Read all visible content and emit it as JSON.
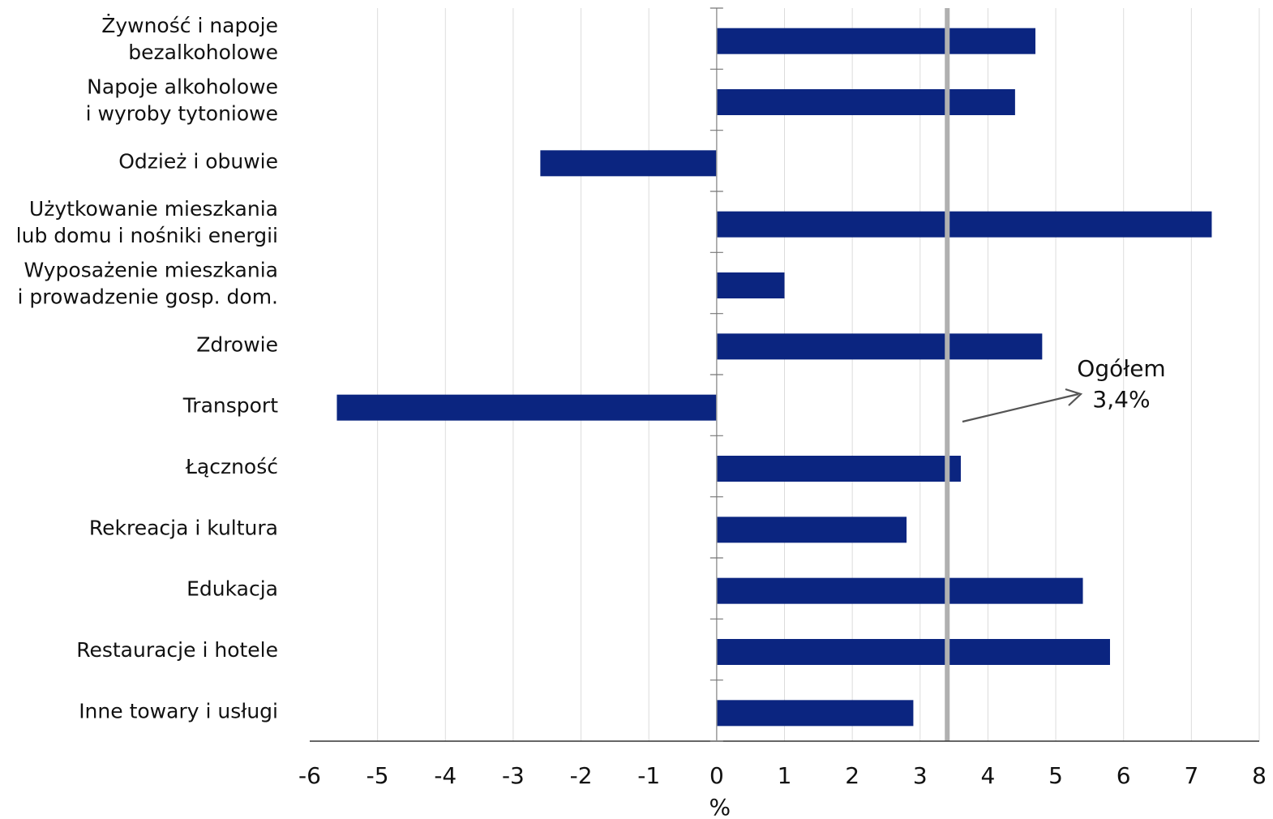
{
  "chart_data": {
    "type": "bar",
    "orientation": "horizontal",
    "categories": [
      [
        "Żywność i napoje",
        "bezalkoholowe"
      ],
      [
        "Napoje alkoholowe",
        "i wyroby tytoniowe"
      ],
      [
        "Odzież i obuwie"
      ],
      [
        "Użytkowanie mieszkania",
        "lub domu i nośniki energii"
      ],
      [
        "Wyposażenie mieszkania",
        "i prowadzenie gosp. dom."
      ],
      [
        "Zdrowie"
      ],
      [
        "Transport"
      ],
      [
        "Łączność"
      ],
      [
        "Rekreacja i kultura"
      ],
      [
        "Edukacja"
      ],
      [
        "Restauracje i hotele"
      ],
      [
        "Inne towary i usługi"
      ]
    ],
    "values": [
      4.7,
      4.4,
      -2.6,
      7.3,
      1.0,
      4.8,
      -5.6,
      3.6,
      2.8,
      5.4,
      5.8,
      2.9
    ],
    "xlabel": "%",
    "xlim": [
      -6,
      8
    ],
    "xticks": [
      "-6",
      "-5",
      "-4",
      "-3",
      "-2",
      "-1",
      "0",
      "1",
      "2",
      "3",
      "4",
      "5",
      "6",
      "7",
      "8"
    ],
    "grid": "vertical",
    "bar_color": "#0b2580",
    "reference_line": {
      "value": 3.4,
      "color": "#b0b0b0",
      "label_line1": "Ogółem",
      "label_line2": "3,4%"
    }
  }
}
